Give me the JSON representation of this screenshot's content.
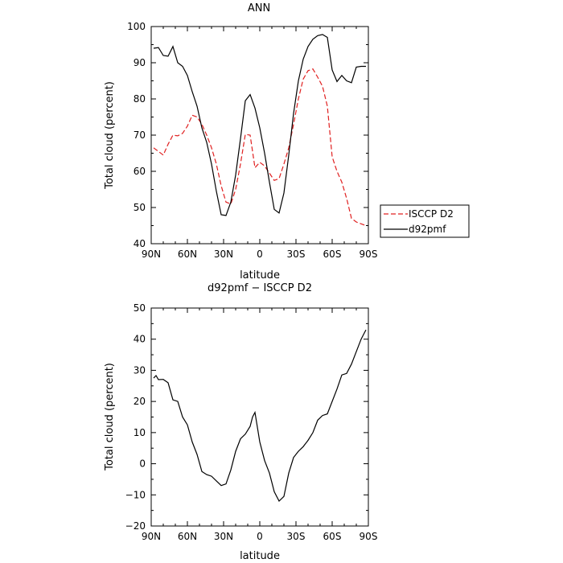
{
  "chart_data": [
    {
      "type": "line",
      "title": "ANN",
      "xlabel": "latitude",
      "ylabel": "Total cloud (percent)",
      "xlim": [
        90,
        -90
      ],
      "ylim": [
        40,
        100
      ],
      "x_ticks": [
        {
          "value": 90,
          "label": "90N"
        },
        {
          "value": 60,
          "label": "60N"
        },
        {
          "value": 30,
          "label": "30N"
        },
        {
          "value": 0,
          "label": "0"
        },
        {
          "value": -30,
          "label": "30S"
        },
        {
          "value": -60,
          "label": "60S"
        },
        {
          "value": -90,
          "label": "90S"
        }
      ],
      "y_ticks": [
        40,
        50,
        60,
        70,
        80,
        90,
        100
      ],
      "legend_position": "right",
      "series": [
        {
          "name": "ISCCP D2",
          "color": "#e02020",
          "dash": "dashed",
          "x": [
            88,
            84,
            80,
            76,
            72,
            68,
            64,
            60,
            56,
            52,
            48,
            44,
            40,
            36,
            32,
            28,
            24,
            20,
            16,
            12,
            8,
            4,
            0,
            -4,
            -8,
            -12,
            -16,
            -20,
            -24,
            -28,
            -32,
            -36,
            -40,
            -44,
            -48,
            -52,
            -56,
            -60,
            -64,
            -68,
            -72,
            -76,
            -80,
            -84,
            -88
          ],
          "y": [
            66.5,
            65.5,
            64.5,
            67.5,
            70,
            69.8,
            70.5,
            72.5,
            75.5,
            75,
            73,
            70,
            66.5,
            62,
            56,
            51.5,
            51,
            55,
            62,
            70.2,
            70,
            61,
            62.5,
            61.5,
            59.5,
            57.5,
            58,
            62,
            66.5,
            73,
            80,
            85.5,
            87.8,
            88.3,
            86,
            83.5,
            78,
            64,
            60,
            57,
            52.5,
            47,
            46,
            45.5,
            45
          ]
        },
        {
          "name": "d92pmf",
          "color": "#000000",
          "dash": "solid",
          "x": [
            88,
            84,
            80,
            76,
            72,
            68,
            64,
            60,
            56,
            52,
            48,
            44,
            40,
            36,
            32,
            28,
            24,
            20,
            16,
            12,
            8,
            4,
            0,
            -4,
            -8,
            -12,
            -16,
            -20,
            -24,
            -28,
            -32,
            -36,
            -40,
            -44,
            -48,
            -52,
            -56,
            -60,
            -64,
            -68,
            -72,
            -76,
            -80,
            -84,
            -88
          ],
          "y": [
            94,
            94.2,
            92,
            91.8,
            94.5,
            90,
            89,
            86.5,
            82,
            78,
            72,
            68,
            62,
            54.5,
            48,
            47.8,
            51.5,
            59,
            69,
            79.5,
            81.2,
            77.5,
            72,
            65,
            57,
            49.5,
            48.5,
            54,
            64.5,
            76,
            85,
            91,
            94.5,
            96.5,
            97.5,
            97.8,
            97,
            88,
            84.8,
            86.5,
            85,
            84.5,
            88.8,
            89,
            89
          ]
        }
      ]
    },
    {
      "type": "line",
      "title": "d92pmf − ISCCP D2",
      "xlabel": "latitude",
      "ylabel": "Total cloud (percent)",
      "xlim": [
        90,
        -90
      ],
      "ylim": [
        -20,
        50
      ],
      "x_ticks": [
        {
          "value": 90,
          "label": "90N"
        },
        {
          "value": 60,
          "label": "60N"
        },
        {
          "value": 30,
          "label": "30N"
        },
        {
          "value": 0,
          "label": "0"
        },
        {
          "value": -30,
          "label": "30S"
        },
        {
          "value": -60,
          "label": "60S"
        },
        {
          "value": -90,
          "label": "90S"
        }
      ],
      "y_ticks": [
        -20,
        -10,
        0,
        10,
        20,
        30,
        40,
        50
      ],
      "series": [
        {
          "color": "#000000",
          "dash": "solid",
          "x": [
            88,
            86,
            84,
            80,
            76,
            72,
            68,
            64,
            60,
            56,
            52,
            48,
            44,
            40,
            36,
            32,
            28,
            24,
            20,
            16,
            12,
            8,
            6,
            4,
            0,
            -4,
            -8,
            -12,
            -16,
            -20,
            -24,
            -28,
            -32,
            -36,
            -40,
            -44,
            -48,
            -52,
            -56,
            -60,
            -64,
            -68,
            -72,
            -76,
            -80,
            -84,
            -86,
            -88
          ],
          "y": [
            27.5,
            28.3,
            27,
            27.1,
            26,
            20.5,
            20,
            15,
            12.5,
            7,
            3,
            -2.5,
            -3.5,
            -4,
            -5.5,
            -7,
            -6.5,
            -2,
            4,
            8,
            9.5,
            12,
            15,
            16.5,
            7,
            1,
            -3,
            -9,
            -12,
            -10.5,
            -3,
            2,
            4,
            5.5,
            7.5,
            10,
            14,
            15.5,
            16,
            20,
            24,
            28.5,
            29,
            32,
            36,
            40,
            41.5,
            43
          ]
        }
      ]
    }
  ]
}
